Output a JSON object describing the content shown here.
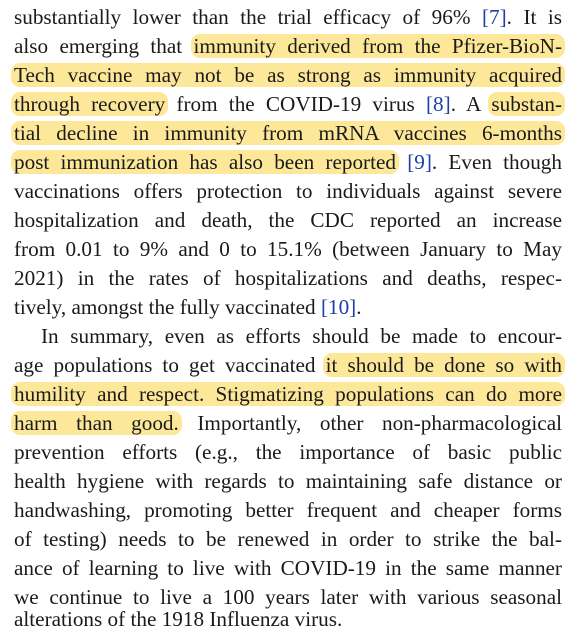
{
  "paragraph1": {
    "lines": [
      {
        "a": "substantially lower than the trial efficacy of 96% ",
        "cite": "[7]",
        "b": ". It is"
      },
      {
        "a": "also emerging that ",
        "hl": "immunity derived from the Pfizer-BioN-"
      },
      {
        "hl": "Tech vaccine may not be as strong as immunity acquired"
      },
      {
        "hl": "through recovery",
        "a": " from the COVID-19 virus ",
        "cite": "[8]",
        "b": ". A ",
        "hl2": "substan-"
      },
      {
        "hl": "tial decline in immunity from mRNA vaccines 6-months"
      },
      {
        "hl": "post immunization has also been reported",
        "a": " ",
        "cite": "[9]",
        "b": ". Even though"
      },
      {
        "a": "vaccinations offers protection to individuals against severe"
      },
      {
        "a": "hospitalization and death, the CDC reported an increase"
      },
      {
        "a": "from 0.01 to 9% and 0 to 15.1% (between January to May"
      },
      {
        "a": "2021) in the rates of hospitalizations and deaths, respec-"
      },
      {
        "a": "tively, amongst the fully vaccinated ",
        "cite": "[10]",
        "b": "."
      }
    ]
  },
  "paragraph2": {
    "lines": [
      {
        "a": "In summary, even as efforts should be made to encour-"
      },
      {
        "a": "age populations to get vaccinated ",
        "hl": "it should be done so with"
      },
      {
        "hl": "humility and respect. Stigmatizing populations can do more"
      },
      {
        "hl": "harm than good.",
        "a": " Importantly, other non-pharmacological"
      },
      {
        "a": "prevention efforts (e.g., the importance of basic public"
      },
      {
        "a": "health hygiene with regards to maintaining safe distance or"
      },
      {
        "a": "handwashing, promoting better frequent and cheaper forms"
      },
      {
        "a": "of testing) needs to be renewed in order to strike the bal-"
      },
      {
        "a": "ance of learning to live with COVID-19 in the same manner"
      },
      {
        "a": "we continue to live a 100 years later with various seasonal"
      },
      {
        "a": "alterations of the 1918 Influenza virus."
      }
    ]
  },
  "colors": {
    "highlight": "#fde89a",
    "citation": "#1f3fa8",
    "text": "#1a1a1a"
  }
}
